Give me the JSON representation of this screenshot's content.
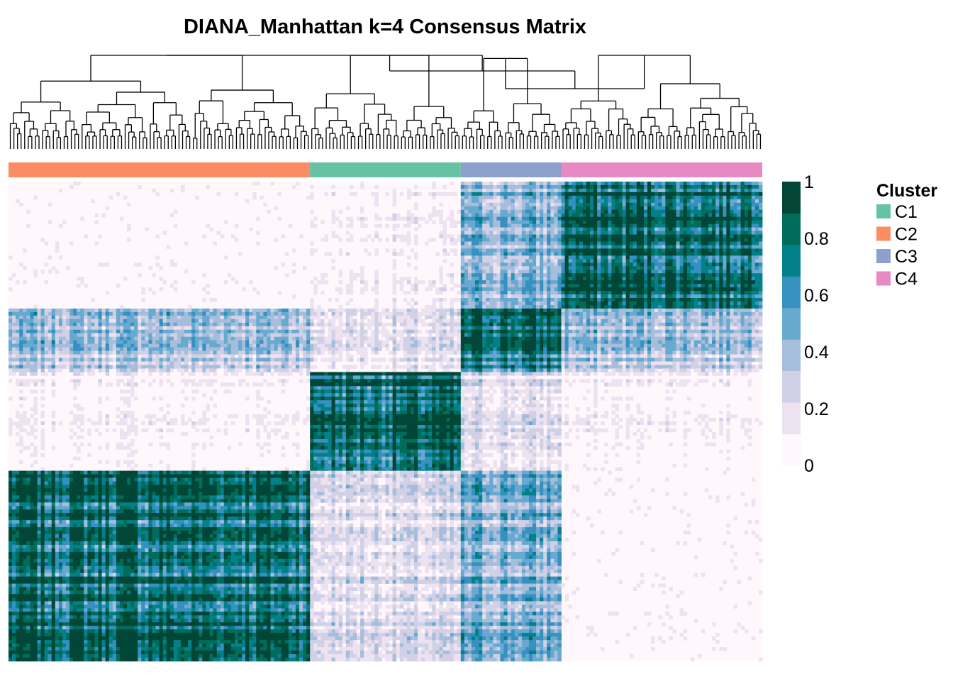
{
  "chart_data": {
    "type": "heatmap",
    "title": "DIANA_Manhattan k=4 Consensus Matrix",
    "annotation_order": [
      "C2",
      "C1",
      "C3",
      "C4"
    ],
    "annotation_widths": [
      84,
      42,
      28,
      56
    ],
    "legend_title": "Cluster",
    "legend_entries": [
      {
        "label": "C1",
        "color": "#66c2a5"
      },
      {
        "label": "C2",
        "color": "#fc8d62"
      },
      {
        "label": "C3",
        "color": "#8da0cb"
      },
      {
        "label": "C4",
        "color": "#e78ac3"
      }
    ],
    "colorbar": {
      "min": 0,
      "max": 1,
      "ticks": [
        "0",
        "0.2",
        "0.4",
        "0.6",
        "0.8",
        "1"
      ],
      "colors": [
        "#fff7fb",
        "#ece2f0",
        "#d0d1e6",
        "#a6bddb",
        "#67a9cf",
        "#3690c0",
        "#02818a",
        "#016c59",
        "#014636"
      ]
    },
    "block_order_rows": [
      "C4",
      "C3",
      "C1",
      "C2"
    ],
    "block_order_cols": [
      "C2",
      "C1",
      "C3",
      "C4"
    ],
    "block_heights": [
      36,
      18,
      28,
      54
    ],
    "block_means": [
      [
        0.0,
        0.05,
        0.45,
        0.85
      ],
      [
        0.35,
        0.15,
        0.75,
        0.35
      ],
      [
        0.05,
        0.85,
        0.2,
        0.05
      ],
      [
        0.8,
        0.2,
        0.45,
        0.0
      ]
    ]
  }
}
